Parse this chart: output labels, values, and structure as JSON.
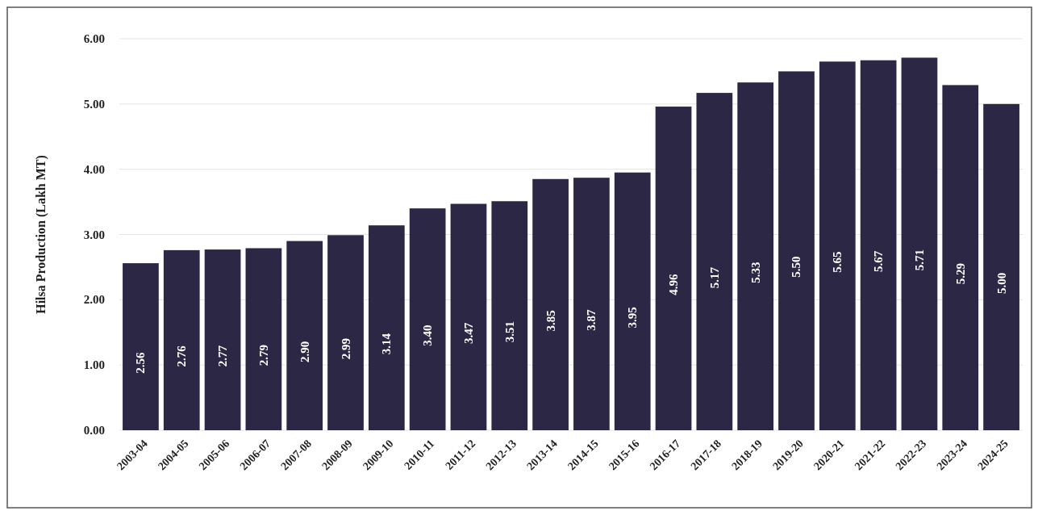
{
  "chart_data": {
    "type": "bar",
    "ylabel": "Hilsa Production (Lakh MT)",
    "categories": [
      "2003-04",
      "2004-05",
      "2005-06",
      "2006-07",
      "2007-08",
      "2008-09",
      "2009-10",
      "2010-11",
      "2011-12",
      "2012-13",
      "2013-14",
      "2014-15",
      "2015-16",
      "2016-17",
      "2017-18",
      "2018-19",
      "2019-20",
      "2020-21",
      "2021-22",
      "2022-23",
      "2023-24",
      "2024-25"
    ],
    "values": [
      2.56,
      2.76,
      2.77,
      2.79,
      2.9,
      2.99,
      3.14,
      3.4,
      3.47,
      3.51,
      3.85,
      3.87,
      3.95,
      4.96,
      5.17,
      5.33,
      5.5,
      5.65,
      5.67,
      5.71,
      5.29,
      5.0
    ],
    "value_labels": [
      "2.56",
      "2.76",
      "2.77",
      "2.79",
      "2.90",
      "2.99",
      "3.14",
      "3.40",
      "3.47",
      "3.51",
      "3.85",
      "3.87",
      "3.95",
      "4.96",
      "5.17",
      "5.33",
      "5.50",
      "5.65",
      "5.67",
      "5.71",
      "5.29",
      "5.00"
    ],
    "color": "#2b2745",
    "ylim": [
      0,
      6
    ],
    "yticks": [
      {
        "value": 0,
        "label": "0.00"
      },
      {
        "value": 1,
        "label": "1.00"
      },
      {
        "value": 2,
        "label": "2.00"
      },
      {
        "value": 3,
        "label": "3.00"
      },
      {
        "value": 4,
        "label": "4.00"
      },
      {
        "value": 5,
        "label": "5.00"
      },
      {
        "value": 6,
        "label": "6.00"
      }
    ],
    "grid": "y"
  }
}
